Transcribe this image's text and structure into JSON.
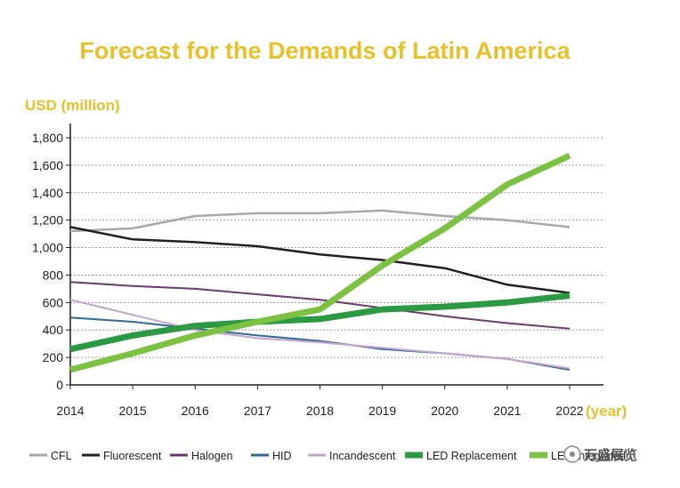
{
  "chart_data": {
    "type": "line",
    "title": "Forecast for the Demands of Latin America",
    "ylabel": "USD (million)",
    "xlabel": "(year)",
    "x": [
      "2014",
      "2015",
      "2016",
      "2017",
      "2018",
      "2019",
      "2020",
      "2021",
      "2022"
    ],
    "yticks": [
      "0",
      "200",
      "400",
      "600",
      "800",
      "1,000",
      "1,200",
      "1,400",
      "1,600",
      "1,800"
    ],
    "ytick_values": [
      0,
      200,
      400,
      600,
      800,
      1000,
      1200,
      1400,
      1600,
      1800
    ],
    "ylim": [
      0,
      1800
    ],
    "grid": "horizontal dotted",
    "legend_position": "bottom",
    "series": [
      {
        "name": "CFL",
        "color": "#a6a8ab",
        "width": 2.5,
        "values": [
          1120,
          1140,
          1230,
          1250,
          1250,
          1270,
          1230,
          1200,
          1150
        ]
      },
      {
        "name": "Fluorescent",
        "color": "#231f20",
        "width": 2.5,
        "values": [
          1150,
          1060,
          1040,
          1010,
          950,
          910,
          850,
          730,
          670
        ]
      },
      {
        "name": "Halogen",
        "color": "#6b3a6e",
        "width": 2,
        "values": [
          750,
          720,
          700,
          660,
          620,
          560,
          500,
          450,
          410
        ]
      },
      {
        "name": "HID",
        "color": "#2e6a94",
        "width": 2,
        "values": [
          490,
          460,
          410,
          360,
          320,
          260,
          230,
          190,
          110
        ]
      },
      {
        "name": "Incandescent",
        "color": "#c8a2cf",
        "width": 2,
        "values": [
          620,
          510,
          400,
          340,
          310,
          270,
          230,
          190,
          120
        ]
      },
      {
        "name": "LED Replacement",
        "color": "#2c9a42",
        "width": 7,
        "values": [
          260,
          360,
          430,
          460,
          480,
          550,
          570,
          600,
          650
        ]
      },
      {
        "name": "LED Integrated",
        "color": "#7cc242",
        "width": 7,
        "values": [
          110,
          230,
          360,
          460,
          550,
          870,
          1140,
          1460,
          1670
        ]
      }
    ]
  },
  "watermark": "万盛展览"
}
